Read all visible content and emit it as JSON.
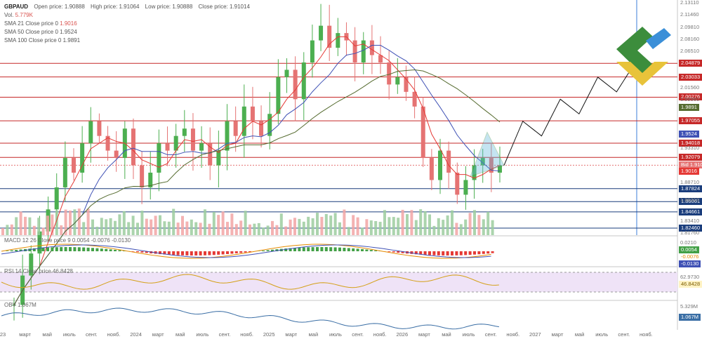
{
  "header": {
    "symbol": "GBPAUD",
    "open_label": "Open price: 1.90888",
    "high_label": "High price: 1.91064",
    "low_label": "Low price: 1.90888",
    "close_label": "Close price: 1.91014",
    "vol_label": "Vol.",
    "vol_value": "5.779K",
    "sma21": "SMA 21 Close price 0",
    "sma21_val": "1.9016",
    "sma50": "SMA 50 Close price 0",
    "sma50_val": "1.9524",
    "sma100": "SMA 100 Close price 0",
    "sma100_val": "1.9891"
  },
  "colors": {
    "up": "#4caf50",
    "down": "#e57373",
    "sma21": "#e53935",
    "sma50": "#3f51b5",
    "sma100": "#556b2f",
    "hline_red": "#c62828",
    "hline_blue": "#1a3d7c",
    "triangle": "#5ab4d9",
    "macd_up": "#43a047",
    "macd_down": "#e53935",
    "rsi": "#d4a017",
    "obv": "#3a6ea5"
  },
  "price_axis_labels": [
    "2.13110",
    "2.11460",
    "2.09810",
    "2.08160",
    "2.06510",
    "2.01560",
    "1.99960",
    "1.93310",
    "1.88710",
    "1.86310",
    "1.83410",
    "1.81760"
  ],
  "price_tags": [
    {
      "text": "2.04879",
      "color": "#c62828",
      "price": 2.04879
    },
    {
      "text": "2.03033",
      "color": "#c62828",
      "price": 2.03033
    },
    {
      "text": "2.00276",
      "color": "#c62828",
      "price": 2.00276
    },
    {
      "text": "1.9891",
      "color": "#556b2f",
      "price": 1.9891
    },
    {
      "text": "1.97055",
      "color": "#c62828",
      "price": 1.97055
    },
    {
      "text": "1.9524",
      "color": "#3f51b5",
      "price": 1.9524
    },
    {
      "text": "1.94018",
      "color": "#c62828",
      "price": 1.94018
    },
    {
      "text": "1.92079",
      "color": "#c62828",
      "price": 1.92079
    },
    {
      "text": "Bid 1.91014",
      "color": "#e57373",
      "price": 1.91014
    },
    {
      "text": "1.9016",
      "color": "#e53935",
      "price": 1.9016
    },
    {
      "text": "1.87824",
      "color": "#1a3d7c",
      "price": 1.87824
    },
    {
      "text": "1.86061",
      "color": "#1a3d7c",
      "price": 1.86061
    },
    {
      "text": "1.84661",
      "color": "#1a3d7c",
      "price": 1.84661
    },
    {
      "text": "1.82460",
      "color": "#1a3d7c",
      "price": 1.8246
    }
  ],
  "macd": {
    "title": "MACD 12 26 Close price 9 0.0054 -0.0076 -0.0130",
    "tags": [
      "0.0054",
      "-0.0076",
      "-0.0130"
    ],
    "axis": "0.0210"
  },
  "rsi": {
    "title": "RSI 14 Close price 46.8428",
    "tag": "46.8428",
    "axis_hi": "62.9730"
  },
  "obv": {
    "title": "OBV 1.067M",
    "tag": "1.067M",
    "axis": "5.329M"
  },
  "x_labels": [
    "23",
    "март",
    "май",
    "июль",
    "сент.",
    "нояб.",
    "2024",
    "март",
    "май",
    "июль",
    "сент.",
    "нояб.",
    "2025",
    "март",
    "май",
    "июль",
    "сент.",
    "нояб.",
    "2026",
    "март",
    "май",
    "июль",
    "сент.",
    "нояб.",
    "2027",
    "март",
    "май",
    "июль",
    "сент.",
    "нояб."
  ],
  "chart_data": {
    "type": "line",
    "title": "GBPAUD",
    "series_close": [
      1.72,
      1.76,
      1.79,
      1.82,
      1.85,
      1.88,
      1.92,
      1.9,
      1.94,
      1.97,
      1.95,
      1.93,
      1.92,
      1.96,
      1.91,
      1.88,
      1.9,
      1.94,
      1.93,
      1.95,
      1.96,
      1.93,
      1.94,
      1.91,
      1.93,
      1.97,
      1.95,
      1.99,
      1.97,
      1.95,
      1.98,
      2.03,
      2.04,
      2.0,
      2.05,
      2.08,
      2.1,
      2.07,
      2.09,
      2.08,
      2.05,
      2.08,
      2.06,
      2.05,
      2.02,
      2.03,
      2.01,
      1.99,
      1.92,
      1.89,
      1.93,
      1.9,
      1.87,
      1.89,
      1.91,
      1.92,
      1.9,
      1.91
    ],
    "sma21_last": 1.9016,
    "sma50_last": 1.9524,
    "sma100_last": 1.9891,
    "horizontal_levels": [
      2.04879,
      2.03033,
      2.00276,
      1.97055,
      1.94018,
      1.92079,
      1.87824,
      1.86061,
      1.84661,
      1.8246
    ],
    "projection": [
      1.91,
      1.97,
      1.95,
      2.0,
      1.98,
      2.03,
      2.01,
      2.05
    ],
    "ylim": [
      1.815,
      2.135
    ]
  }
}
